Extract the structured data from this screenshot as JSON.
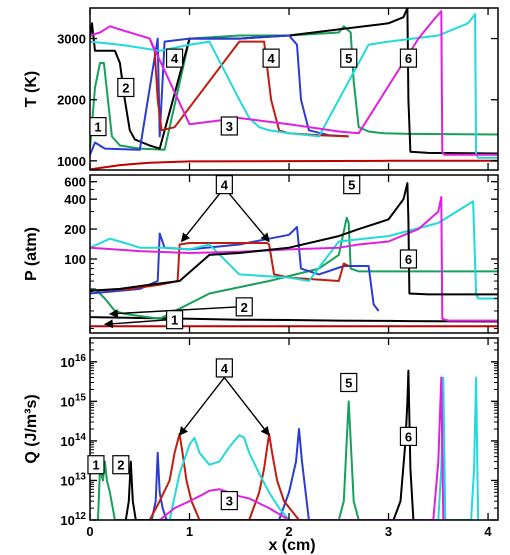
{
  "colors": {
    "black": "#000000",
    "green": "#16a05a",
    "blue": "#2b3bd6",
    "red": "#c01c10",
    "cyan": "#22d9d9",
    "magenta": "#e020e0",
    "darkred": "#c00000"
  },
  "x_axis": {
    "label": "x (cm)",
    "range": [
      0,
      4.1
    ],
    "ticks": [
      0,
      1,
      2,
      3,
      4
    ],
    "tick_labels": [
      "0",
      "1",
      "2",
      "3",
      "4"
    ]
  },
  "chart_data": [
    {
      "type": "line",
      "name": "temperature",
      "ylabel": "T (K)",
      "ylim": [
        850,
        3500
      ],
      "yscale": "linear",
      "yticks": [
        1000,
        2000,
        3000
      ],
      "ytick_labels": [
        "1000",
        "2000",
        "3000"
      ],
      "series": [
        {
          "color": "darkred",
          "x": [
            0,
            0.3,
            0.6,
            1.0,
            2.0,
            3.0,
            4.1
          ],
          "y": [
            860,
            930,
            970,
            990,
            995,
            1000,
            1000
          ]
        },
        {
          "color": "green",
          "x": [
            0,
            0.05,
            0.1,
            0.14,
            0.18,
            0.22,
            0.3,
            0.5,
            0.75,
            1.0,
            1.5,
            2.0,
            2.5,
            2.55,
            2.62,
            2.65,
            2.7,
            2.8,
            2.95,
            3.2,
            4.1
          ],
          "y": [
            1200,
            2200,
            2600,
            2600,
            2000,
            1400,
            1250,
            1200,
            1180,
            3000,
            3050,
            3050,
            3100,
            3200,
            3100,
            2300,
            1550,
            1480,
            1450,
            1440,
            1430
          ]
        },
        {
          "color": "black",
          "x": [
            0,
            0.02,
            0.05,
            0.25,
            0.3,
            0.35,
            0.4,
            0.45,
            0.6,
            0.7,
            1.0,
            1.5,
            2.0,
            2.5,
            3.0,
            3.15,
            3.19,
            3.2,
            3.22,
            3.4,
            4.1
          ],
          "y": [
            3000,
            3250,
            2800,
            2800,
            2600,
            2000,
            1500,
            1350,
            1250,
            1200,
            3000,
            3000,
            3050,
            3150,
            3250,
            3350,
            3500,
            2000,
            1150,
            1130,
            1120
          ]
        },
        {
          "color": "blue",
          "x": [
            0,
            0.05,
            0.15,
            0.5,
            0.68,
            0.7,
            0.75,
            1.0,
            1.5,
            2.0,
            2.08,
            2.12,
            2.2,
            2.4,
            2.6
          ],
          "y": [
            1100,
            1300,
            1200,
            1180,
            3000,
            1400,
            2950,
            3000,
            3000,
            3050,
            2900,
            2000,
            1500,
            1420,
            1400
          ]
        },
        {
          "color": "red",
          "x": [
            0.6,
            0.65,
            0.68,
            0.72,
            0.85,
            1.5,
            1.75,
            1.82,
            1.9,
            2.0,
            2.3,
            2.6
          ],
          "y": [
            3000,
            2800,
            2000,
            1500,
            1550,
            2950,
            2950,
            2000,
            1500,
            1450,
            1420,
            1400
          ]
        },
        {
          "color": "cyan",
          "x": [
            0,
            0.3,
            0.7,
            1.0,
            1.2,
            1.5,
            1.6,
            1.7,
            1.8,
            2.0,
            2.2,
            2.3,
            2.8,
            3.0,
            3.5,
            3.8,
            3.87,
            3.88,
            3.9,
            4.1
          ],
          "y": [
            2950,
            2900,
            2800,
            2900,
            2950,
            2000,
            1700,
            1550,
            1500,
            1450,
            1420,
            1400,
            2900,
            2950,
            3050,
            3250,
            3400,
            1100,
            1050,
            1050
          ]
        },
        {
          "color": "magenta",
          "x": [
            0,
            0.1,
            0.2,
            0.6,
            1.0,
            1.5,
            2.0,
            2.5,
            2.7,
            3.3,
            3.45,
            3.53,
            3.54,
            3.56,
            4.1
          ],
          "y": [
            3050,
            3100,
            3200,
            3000,
            1600,
            1700,
            1600,
            1480,
            1450,
            3000,
            3300,
            3450,
            1150,
            1100,
            1100
          ]
        }
      ],
      "labels": [
        {
          "text": "1",
          "x": 0.08,
          "y": 1560
        },
        {
          "text": "2",
          "x": 0.36,
          "y": 2200
        },
        {
          "text": "3",
          "x": 1.4,
          "y": 1570
        },
        {
          "text": "4",
          "x": 0.85,
          "y": 2680
        },
        {
          "text": "4",
          "x": 1.82,
          "y": 2680
        },
        {
          "text": "5",
          "x": 2.6,
          "y": 2680
        },
        {
          "text": "6",
          "x": 3.2,
          "y": 2680
        }
      ]
    },
    {
      "type": "line",
      "name": "pressure",
      "ylabel": "P (atm)",
      "ylim": [
        18,
        700
      ],
      "yscale": "log",
      "yticks": [
        100,
        200,
        400,
        600
      ],
      "ytick_labels": [
        "100",
        "200",
        "400",
        "600"
      ],
      "series": [
        {
          "color": "darkred",
          "x": [
            0,
            4.1
          ],
          "y": [
            21,
            21
          ]
        },
        {
          "color": "black",
          "x": [
            0,
            0.5,
            1.0,
            1.5,
            2.0,
            2.5,
            3.0,
            3.2,
            4.1
          ],
          "y": [
            26,
            25.5,
            25,
            24.5,
            24.3,
            24,
            23.8,
            23.7,
            23.5
          ]
        },
        {
          "color": "green",
          "x": [
            0,
            0.05,
            0.15,
            0.25,
            0.35,
            0.7,
            1.2,
            1.8,
            2.3,
            2.5,
            2.58,
            2.6,
            2.62,
            2.7,
            3.0,
            4.1
          ],
          "y": [
            45,
            50,
            40,
            30,
            28,
            25,
            45,
            60,
            80,
            110,
            260,
            230,
            80,
            75,
            75,
            75
          ]
        },
        {
          "color": "blue",
          "x": [
            0,
            0.5,
            0.68,
            0.7,
            0.75,
            1.0,
            1.5,
            2.0,
            2.08,
            2.12,
            2.3,
            2.55,
            2.8,
            2.85,
            2.9
          ],
          "y": [
            45,
            50,
            60,
            180,
            130,
            125,
            140,
            175,
            210,
            80,
            70,
            85,
            85,
            35,
            30
          ]
        },
        {
          "color": "red",
          "x": [
            0,
            0.4,
            0.7,
            0.88,
            0.9,
            1.0,
            1.5,
            1.78,
            1.8,
            1.85,
            2.0,
            2.5,
            2.55,
            2.6
          ],
          "y": [
            48,
            50,
            55,
            60,
            140,
            145,
            145,
            145,
            140,
            70,
            65,
            60,
            90,
            85
          ]
        },
        {
          "color": "cyan",
          "x": [
            0,
            0.2,
            0.4,
            0.5,
            0.6,
            0.8,
            1.0,
            1.2,
            1.5,
            2.0,
            2.2,
            2.5,
            3.0,
            3.5,
            3.85,
            3.88,
            3.9,
            4.1
          ],
          "y": [
            130,
            160,
            140,
            130,
            130,
            130,
            125,
            140,
            70,
            65,
            60,
            150,
            170,
            230,
            380,
            45,
            40,
            40
          ]
        },
        {
          "color": "magenta",
          "x": [
            0,
            0.5,
            1.0,
            1.5,
            2.0,
            2.5,
            2.7,
            3.0,
            3.3,
            3.5,
            3.53,
            3.54,
            3.6,
            4.1
          ],
          "y": [
            130,
            120,
            115,
            118,
            125,
            130,
            140,
            150,
            200,
            300,
            420,
            25,
            24,
            24
          ]
        },
        {
          "color": "black",
          "x": [
            0,
            0.3,
            0.6,
            0.9,
            1.2,
            1.5,
            2.0,
            2.5,
            2.7,
            3.0,
            3.15,
            3.19,
            3.2,
            3.21,
            3.4,
            4.1
          ],
          "y": [
            48,
            50,
            55,
            60,
            110,
            115,
            130,
            170,
            200,
            250,
            400,
            580,
            250,
            45,
            44,
            44
          ]
        }
      ],
      "labels": [
        {
          "text": "1",
          "x": 0.85,
          "y": 24.5
        },
        {
          "text": "2",
          "x": 1.55,
          "y": 33
        },
        {
          "text": "4",
          "x": 1.35,
          "y": 560
        },
        {
          "text": "5",
          "x": 2.63,
          "y": 560
        },
        {
          "text": "6",
          "x": 3.2,
          "y": 100
        }
      ],
      "arrows": [
        {
          "from": [
            1.35,
            520
          ],
          "to": [
            0.92,
            150
          ]
        },
        {
          "from": [
            1.35,
            520
          ],
          "to": [
            1.8,
            150
          ]
        },
        {
          "from": [
            1.5,
            33
          ],
          "to": [
            0.2,
            28
          ]
        },
        {
          "from": [
            0.8,
            24.5
          ],
          "to": [
            0.15,
            22
          ]
        }
      ]
    },
    {
      "type": "line",
      "name": "heat_release",
      "ylabel": "Q (J/m³s)",
      "ylim": [
        1000000000000.0,
        4e+16
      ],
      "yscale": "log",
      "yticks": [
        1000000000000.0,
        10000000000000.0,
        100000000000000.0,
        1000000000000000.0,
        1e+16
      ],
      "ytick_labels": [
        "10",
        "10",
        "10",
        "10",
        "10"
      ],
      "ytick_exponents": [
        "12",
        "13",
        "14",
        "15",
        "16"
      ],
      "series": [
        {
          "color": "green",
          "x": [
            0.08,
            0.1,
            0.13,
            0.15,
            0.17,
            0.2,
            0.25,
            2.5,
            2.55,
            2.58,
            2.6,
            2.62,
            2.65,
            2.7
          ],
          "y": [
            1000000000000.0,
            20000000000000.0,
            10000000000000.0,
            30000000000000.0,
            10000000000000.0,
            5000000000000.0,
            1000000000000.0,
            1000000000000.0,
            3000000000000.0,
            100000000000000.0,
            1000000000000000.0,
            100000000000000.0,
            3000000000000.0,
            1000000000000.0
          ]
        },
        {
          "color": "black",
          "x": [
            0.36,
            0.39,
            0.41,
            0.43,
            0.46,
            3.05,
            3.12,
            3.17,
            3.19,
            3.2,
            3.22,
            3.25
          ],
          "y": [
            1000000000000.0,
            3000000000000.0,
            30000000000000.0,
            3000000000000.0,
            1000000000000.0,
            1000000000000.0,
            3000000000000.0,
            100000000000000.0,
            1000000000000000.0,
            6000000000000000.0,
            20000000000000.0,
            1000000000000.0
          ]
        },
        {
          "color": "blue",
          "x": [
            0.62,
            0.66,
            0.68,
            0.7,
            0.73,
            0.77,
            1.9,
            2.0,
            2.07,
            2.1,
            2.13,
            2.2
          ],
          "y": [
            1000000000000.0,
            3000000000000.0,
            50000000000000.0,
            5000000000000.0,
            2000000000000.0,
            1000000000000.0,
            1000000000000.0,
            5000000000000.0,
            30000000000000.0,
            200000000000000.0,
            30000000000000.0,
            1000000000000.0
          ]
        },
        {
          "color": "red",
          "x": [
            0.6,
            0.7,
            0.8,
            0.85,
            0.9,
            0.93,
            0.97,
            1.02,
            1.1,
            1.6,
            1.7,
            1.75,
            1.8,
            1.83,
            1.88,
            1.95,
            2.1
          ],
          "y": [
            1000000000000.0,
            3000000000000.0,
            10000000000000.0,
            50000000000000.0,
            150000000000000.0,
            50000000000000.0,
            10000000000000.0,
            3000000000000.0,
            1000000000000.0,
            1000000000000.0,
            5000000000000.0,
            20000000000000.0,
            150000000000000.0,
            50000000000000.0,
            10000000000000.0,
            3000000000000.0,
            1000000000000.0
          ]
        },
        {
          "color": "cyan",
          "x": [
            0.8,
            0.9,
            1.0,
            1.05,
            1.1,
            1.2,
            1.3,
            1.4,
            1.5,
            1.55,
            1.6,
            1.7,
            1.8,
            1.9,
            2.0,
            3.5,
            3.53,
            3.55,
            3.57,
            3.83,
            3.86,
            3.88,
            3.9
          ],
          "y": [
            1000000000000.0,
            15000000000000.0,
            80000000000000.0,
            120000000000000.0,
            50000000000000.0,
            25000000000000.0,
            30000000000000.0,
            70000000000000.0,
            140000000000000.0,
            120000000000000.0,
            50000000000000.0,
            15000000000000.0,
            5000000000000.0,
            2000000000000.0,
            1000000000000.0,
            1000000000000.0,
            20000000000000.0,
            4000000000000000.0,
            1000000000000.0,
            1000000000000.0,
            20000000000000.0,
            4000000000000000.0,
            1000000000000.0
          ]
        },
        {
          "color": "magenta",
          "x": [
            0.7,
            0.85,
            1.0,
            1.1,
            1.2,
            1.3,
            1.4,
            1.5,
            1.6,
            1.8,
            2.0,
            3.45,
            3.5,
            3.53,
            3.55
          ],
          "y": [
            1000000000000.0,
            2000000000000.0,
            3000000000000.0,
            4000000000000.0,
            5500000000000.0,
            6000000000000.0,
            5000000000000.0,
            4000000000000.0,
            3500000000000.0,
            2000000000000.0,
            1000000000000.0,
            1000000000000.0,
            30000000000000.0,
            4000000000000000.0,
            1000000000000.0
          ]
        }
      ],
      "labels": [
        {
          "text": "1",
          "x": 0.06,
          "y": 25000000000000.0
        },
        {
          "text": "2",
          "x": 0.31,
          "y": 25000000000000.0
        },
        {
          "text": "3",
          "x": 1.4,
          "y": 3100000000000.0
        },
        {
          "text": "4",
          "x": 1.35,
          "y": 7000000000000000.0
        },
        {
          "text": "5",
          "x": 2.6,
          "y": 3000000000000000.0
        },
        {
          "text": "6",
          "x": 3.2,
          "y": 130000000000000.0
        }
      ],
      "arrows": [
        {
          "from": [
            1.35,
            4000000000000000.0
          ],
          "to": [
            0.9,
            140000000000000.0
          ]
        },
        {
          "from": [
            1.35,
            4000000000000000.0
          ],
          "to": [
            1.8,
            140000000000000.0
          ]
        }
      ]
    }
  ]
}
